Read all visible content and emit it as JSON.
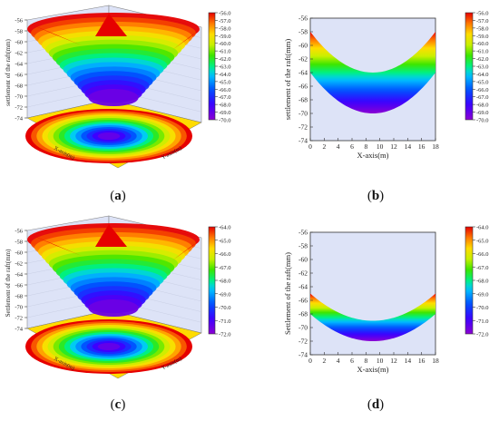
{
  "figure": {
    "panels": [
      {
        "id": "a",
        "caption": "a"
      },
      {
        "id": "b",
        "caption": "b"
      },
      {
        "id": "c",
        "caption": "c"
      },
      {
        "id": "d",
        "caption": "d"
      }
    ]
  },
  "chart_data": [
    {
      "id": "a",
      "type": "heatmap",
      "subtype": "3d-surface",
      "title": "",
      "zlabel": "settlement of the raft(mm)",
      "xlabel": "X-axis(m)",
      "ylabel": "Y-axis(m)",
      "zticks": [
        "-56",
        "-58",
        "-60",
        "-62",
        "-64",
        "-66",
        "-68",
        "-70",
        "-72",
        "-74"
      ],
      "zlim": [
        -74,
        -56
      ],
      "colorbar": {
        "ticks": [
          "-56.0",
          "-57.0",
          "-58.0",
          "-59.0",
          "-60.0",
          "-61.0",
          "-62.0",
          "-63.0",
          "-64.0",
          "-65.0",
          "-66.0",
          "-67.0",
          "-68.0",
          "-69.0",
          "-70.0"
        ],
        "range": [
          -70,
          -56
        ]
      },
      "center_value": -70,
      "corner_value": -56
    },
    {
      "id": "b",
      "type": "area",
      "title": "",
      "xlabel": "X-axis(m)",
      "ylabel": "settlement of the raft(mm)",
      "xticks": [
        "0",
        "2",
        "4",
        "6",
        "8",
        "10",
        "12",
        "14",
        "16",
        "18"
      ],
      "yticks": [
        "-56",
        "-58",
        "-60",
        "-62",
        "-64",
        "-66",
        "-68",
        "-70",
        "-72",
        "-74"
      ],
      "xlim": [
        0,
        18
      ],
      "ylim": [
        -74,
        -56
      ],
      "upper": {
        "x": [
          0,
          9,
          18
        ],
        "y": [
          -58,
          -64,
          -58
        ]
      },
      "lower": {
        "x": [
          0,
          9,
          18
        ],
        "y": [
          -64,
          -70,
          -64
        ]
      },
      "colorbar": {
        "ticks": [
          "-56.0",
          "-57.0",
          "-58.0",
          "-59.0",
          "-60.0",
          "-61.0",
          "-62.0",
          "-63.0",
          "-64.0",
          "-65.0",
          "-66.0",
          "-67.0",
          "-68.0",
          "-69.0",
          "-70.0"
        ],
        "range": [
          -70,
          -56
        ]
      }
    },
    {
      "id": "c",
      "type": "heatmap",
      "subtype": "3d-surface",
      "title": "",
      "zlabel": "Settlement of the raft(mm)",
      "xlabel": "X-axis(m)",
      "ylabel": "Y-axis(m)",
      "zticks": [
        "-56",
        "-58",
        "-60",
        "-62",
        "-64",
        "-66",
        "-68",
        "-70",
        "-72",
        "-74"
      ],
      "zlim": [
        -74,
        -56
      ],
      "colorbar": {
        "ticks": [
          "-64.0",
          "-65.0",
          "-66.0",
          "-67.0",
          "-68.0",
          "-69.0",
          "-70.0",
          "-71.0",
          "-72.0"
        ],
        "range": [
          -72,
          -64
        ]
      },
      "center_value": -72,
      "corner_value": -64
    },
    {
      "id": "d",
      "type": "area",
      "title": "",
      "xlabel": "X-axis(m)",
      "ylabel": "Settlement of the raft(mm)",
      "xticks": [
        "0",
        "2",
        "4",
        "6",
        "8",
        "10",
        "12",
        "14",
        "16",
        "18"
      ],
      "yticks": [
        "-56",
        "-58",
        "-60",
        "-62",
        "-64",
        "-66",
        "-68",
        "-70",
        "-72",
        "-74"
      ],
      "xlim": [
        0,
        18
      ],
      "ylim": [
        -74,
        -56
      ],
      "upper": {
        "x": [
          0,
          9,
          18
        ],
        "y": [
          -65,
          -69,
          -65
        ]
      },
      "lower": {
        "x": [
          0,
          9,
          18
        ],
        "y": [
          -68,
          -72,
          -68
        ]
      },
      "colorbar": {
        "ticks": [
          "-64.0",
          "-65.0",
          "-66.0",
          "-67.0",
          "-68.0",
          "-69.0",
          "-70.0",
          "-71.0",
          "-72.0"
        ],
        "range": [
          -72,
          -64
        ]
      }
    }
  ]
}
